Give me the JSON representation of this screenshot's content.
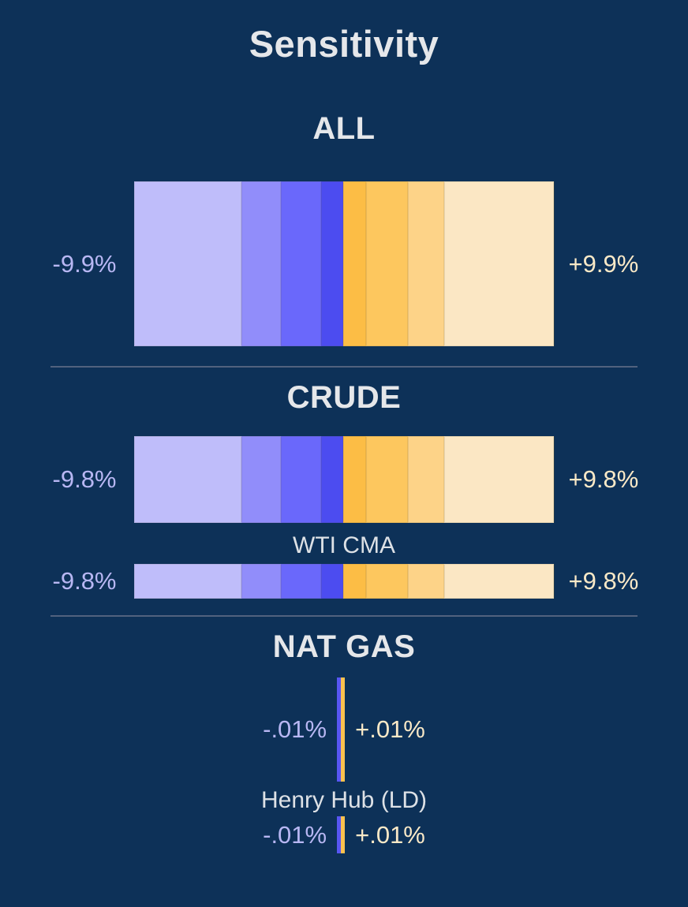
{
  "theme": {
    "bg": "#0d3158",
    "heading_text": "#e5e7ea",
    "sub_text": "#dde1e6",
    "neg_text": "#b8b7f3",
    "pos_text": "#fae9c7",
    "divider": "#51627e"
  },
  "page": {
    "title": "Sensitivity"
  },
  "bar_template": {
    "colors": [
      "#bfbdfa",
      "#918dfa",
      "#6a68fb",
      "#4c4cf0",
      "#fcbd45",
      "#fdc75e",
      "#fdd388",
      "#fbe7c4"
    ],
    "widths_pct": [
      25.7,
      9.2,
      9.6,
      5.25,
      5.45,
      9.95,
      8.6,
      26.25
    ]
  },
  "vbar_template": {
    "colors": [
      "#5856f2",
      "#fcc14e"
    ]
  },
  "sections": [
    {
      "heading": "ALL",
      "main": {
        "neg_label": "-9.9%",
        "pos_label": "+9.9%"
      }
    },
    {
      "heading": "CRUDE",
      "main": {
        "neg_label": "-9.8%",
        "pos_label": "+9.8%"
      },
      "sub": {
        "label": "WTI CMA",
        "neg_label": "-9.8%",
        "pos_label": "+9.8%"
      }
    },
    {
      "heading": "NAT GAS",
      "main": {
        "neg_label": "-.01%",
        "pos_label": "+.01%"
      },
      "sub": {
        "label": "Henry Hub (LD)",
        "neg_label": "-.01%",
        "pos_label": "+.01%"
      }
    }
  ],
  "chart_data": {
    "type": "bar",
    "title": "Sensitivity",
    "orientation": "diverging-horizontal",
    "unit": "%",
    "groups": [
      {
        "name": "ALL",
        "negative": -9.9,
        "positive": 9.9
      },
      {
        "name": "CRUDE",
        "negative": -9.8,
        "positive": 9.8,
        "children": [
          {
            "name": "WTI CMA",
            "negative": -9.8,
            "positive": 9.8
          }
        ]
      },
      {
        "name": "NAT GAS",
        "negative": -0.01,
        "positive": 0.01,
        "children": [
          {
            "name": "Henry Hub (LD)",
            "negative": -0.01,
            "positive": 0.01
          }
        ]
      }
    ],
    "legend": "off",
    "grid": "off",
    "negative_segment_colors": [
      "#bfbdfa",
      "#918dfa",
      "#6a68fb",
      "#4c4cf0"
    ],
    "positive_segment_colors": [
      "#fcbd45",
      "#fdc75e",
      "#fdd388",
      "#fbe7c4"
    ]
  }
}
